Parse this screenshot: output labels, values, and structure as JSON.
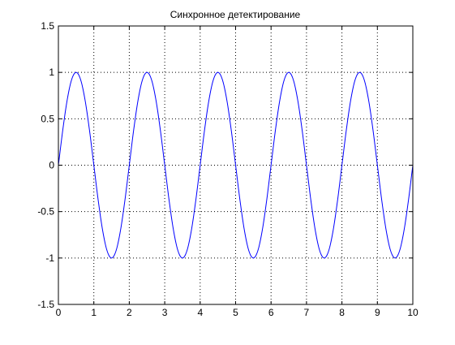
{
  "chart_data": {
    "type": "line",
    "title": "Синхронное детектирование",
    "xlabel": "",
    "ylabel": "",
    "xlim": [
      0,
      10
    ],
    "ylim": [
      -1.5,
      1.5
    ],
    "xticks": [
      0,
      1,
      2,
      3,
      4,
      5,
      6,
      7,
      8,
      9,
      10
    ],
    "yticks": [
      -1.5,
      -1,
      -0.5,
      0,
      0.5,
      1,
      1.5
    ],
    "xtick_labels": [
      "0",
      "1",
      "2",
      "3",
      "4",
      "5",
      "6",
      "7",
      "8",
      "9",
      "10"
    ],
    "ytick_labels": [
      "-1.5",
      "-1",
      "-0.5",
      "0",
      "0.5",
      "1",
      "1.5"
    ],
    "grid": true,
    "series": [
      {
        "x": [
          0,
          0.125,
          0.25,
          0.375,
          0.5,
          0.625,
          0.75,
          0.875,
          1,
          1.125,
          1.25,
          1.375,
          1.5,
          1.625,
          1.75,
          1.875,
          2,
          2.125,
          2.25,
          2.375,
          2.5,
          2.625,
          2.75,
          2.875,
          3,
          3.125,
          3.25,
          3.375,
          3.5,
          3.625,
          3.75,
          3.875,
          4,
          4.125,
          4.25,
          4.375,
          4.5,
          4.625,
          4.75,
          4.875,
          5,
          5.125,
          5.25,
          5.375,
          5.5,
          5.625,
          5.75,
          5.875,
          6,
          6.125,
          6.25,
          6.375,
          6.5,
          6.625,
          6.75,
          6.875,
          7,
          7.125,
          7.25,
          7.375,
          7.5,
          7.625,
          7.75,
          7.875,
          8,
          8.125,
          8.25,
          8.375,
          8.5,
          8.625,
          8.75,
          8.875,
          9,
          9.125,
          9.25,
          9.375,
          9.5,
          9.625,
          9.75,
          9.875,
          10
        ],
        "values": [
          0,
          0.383,
          0.707,
          0.924,
          1,
          0.924,
          0.707,
          0.383,
          0,
          -0.383,
          -0.707,
          -0.924,
          -1,
          -0.924,
          -0.707,
          -0.383,
          0,
          0.383,
          0.707,
          0.924,
          1,
          0.924,
          0.707,
          0.383,
          0,
          -0.383,
          -0.707,
          -0.924,
          -1,
          -0.924,
          -0.707,
          -0.383,
          0,
          0.383,
          0.707,
          0.924,
          1,
          0.924,
          0.707,
          0.383,
          0,
          -0.383,
          -0.707,
          -0.924,
          -1,
          -0.924,
          -0.707,
          -0.383,
          0,
          0.383,
          0.707,
          0.924,
          1,
          0.924,
          0.707,
          0.383,
          0,
          -0.383,
          -0.707,
          -0.924,
          -1,
          -0.924,
          -0.707,
          -0.383,
          0,
          0.383,
          0.707,
          0.924,
          1,
          0.924,
          0.707,
          0.383,
          0,
          -0.383,
          -0.707,
          -0.924,
          -1,
          -0.924,
          -0.707,
          -0.383,
          0
        ],
        "color": "#0000ff"
      }
    ]
  }
}
